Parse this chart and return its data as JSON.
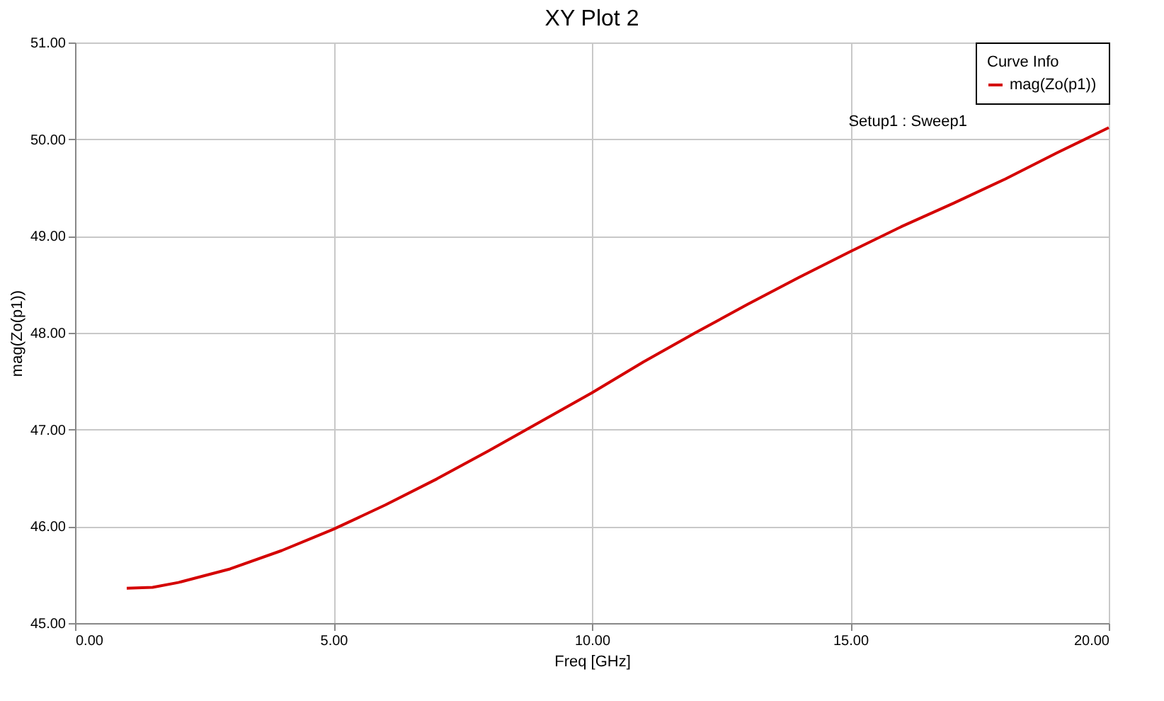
{
  "chart_data": {
    "type": "line",
    "title": "XY Plot 2",
    "xlabel": "Freq [GHz]",
    "ylabel": "mag(Zo(p1))",
    "legend_title": "Curve Info",
    "annotations": [
      "Setup1 : Sweep1"
    ],
    "x": [
      1,
      1.5,
      2,
      3,
      4,
      5,
      6,
      7,
      8,
      9,
      10,
      11,
      12,
      13,
      14,
      15,
      16,
      17,
      18,
      19,
      20
    ],
    "series": [
      {
        "name": "mag(Zo(p1))",
        "color": "#d40000",
        "values": [
          45.36,
          45.37,
          45.42,
          45.56,
          45.75,
          45.97,
          46.22,
          46.49,
          46.78,
          47.08,
          47.38,
          47.7,
          48.0,
          48.29,
          48.57,
          48.84,
          49.1,
          49.34,
          49.59,
          49.86,
          50.12
        ]
      }
    ],
    "xlim": [
      0,
      20
    ],
    "xticks": [
      {
        "value": 0,
        "label": "0.00"
      },
      {
        "value": 5,
        "label": "5.00"
      },
      {
        "value": 10,
        "label": "10.00"
      },
      {
        "value": 15,
        "label": "15.00"
      },
      {
        "value": 20,
        "label": "20.00"
      }
    ],
    "ylim": [
      45,
      51
    ],
    "yticks": [
      {
        "value": 45,
        "label": "45.00"
      },
      {
        "value": 46,
        "label": "46.00"
      },
      {
        "value": 47,
        "label": "47.00"
      },
      {
        "value": 48,
        "label": "48.00"
      },
      {
        "value": 49,
        "label": "49.00"
      },
      {
        "value": 50,
        "label": "50.00"
      },
      {
        "value": 51,
        "label": "51.00"
      }
    ],
    "grid": true,
    "legend": "top right",
    "marker": "none",
    "line_style": "solid"
  }
}
